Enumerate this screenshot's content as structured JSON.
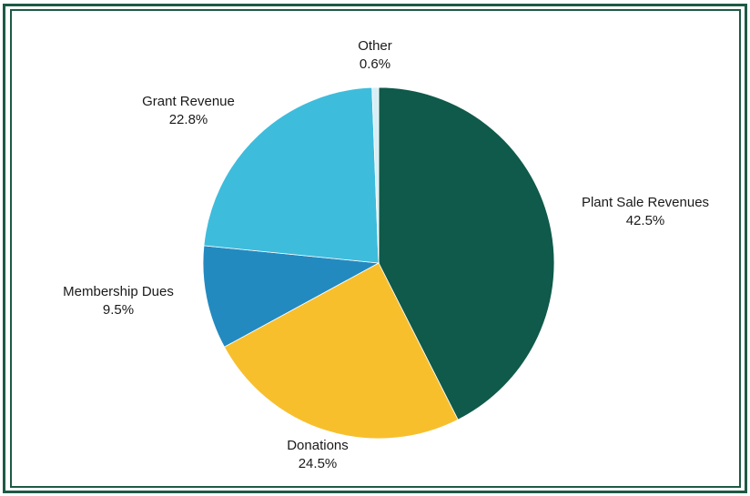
{
  "chart_data": {
    "type": "pie",
    "title": "",
    "slices": [
      {
        "label": "Plant Sale Revenues",
        "value": 42.5,
        "value_label": "42.5%",
        "color": "#0f5a4a"
      },
      {
        "label": "Donations",
        "value": 24.5,
        "value_label": "24.5%",
        "color": "#f8bf2d"
      },
      {
        "label": "Membership Dues",
        "value": 9.5,
        "value_label": "9.5%",
        "color": "#238ac0"
      },
      {
        "label": "Grant Revenue",
        "value": 22.8,
        "value_label": "22.8%",
        "color": "#3ebcdc"
      },
      {
        "label": "Other",
        "value": 0.6,
        "value_label": "0.6%",
        "color": "#d8eef6"
      }
    ],
    "start_angle": "top",
    "direction": "clockwise",
    "legend": "none",
    "frame_color": "#1e5a44"
  }
}
